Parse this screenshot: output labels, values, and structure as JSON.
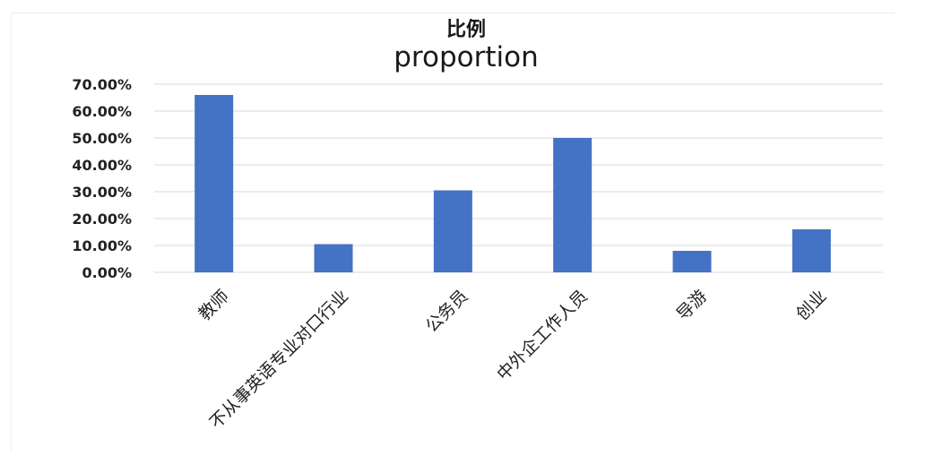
{
  "chart_data": {
    "type": "bar",
    "title": "比例",
    "subtitle": "proportion",
    "categories": [
      "教师",
      "不从事英语专业对口行业",
      "公务员",
      "中外企工作人员",
      "导游",
      "创业"
    ],
    "values": [
      0.66,
      0.105,
      0.305,
      0.5,
      0.08,
      0.16
    ],
    "yticks": [
      "0.00%",
      "10.00%",
      "20.00%",
      "30.00%",
      "40.00%",
      "50.00%",
      "60.00%",
      "70.00%"
    ],
    "ylim": [
      0,
      0.7
    ],
    "grid": true,
    "legend": "none",
    "bar_color": "#4472c4"
  }
}
